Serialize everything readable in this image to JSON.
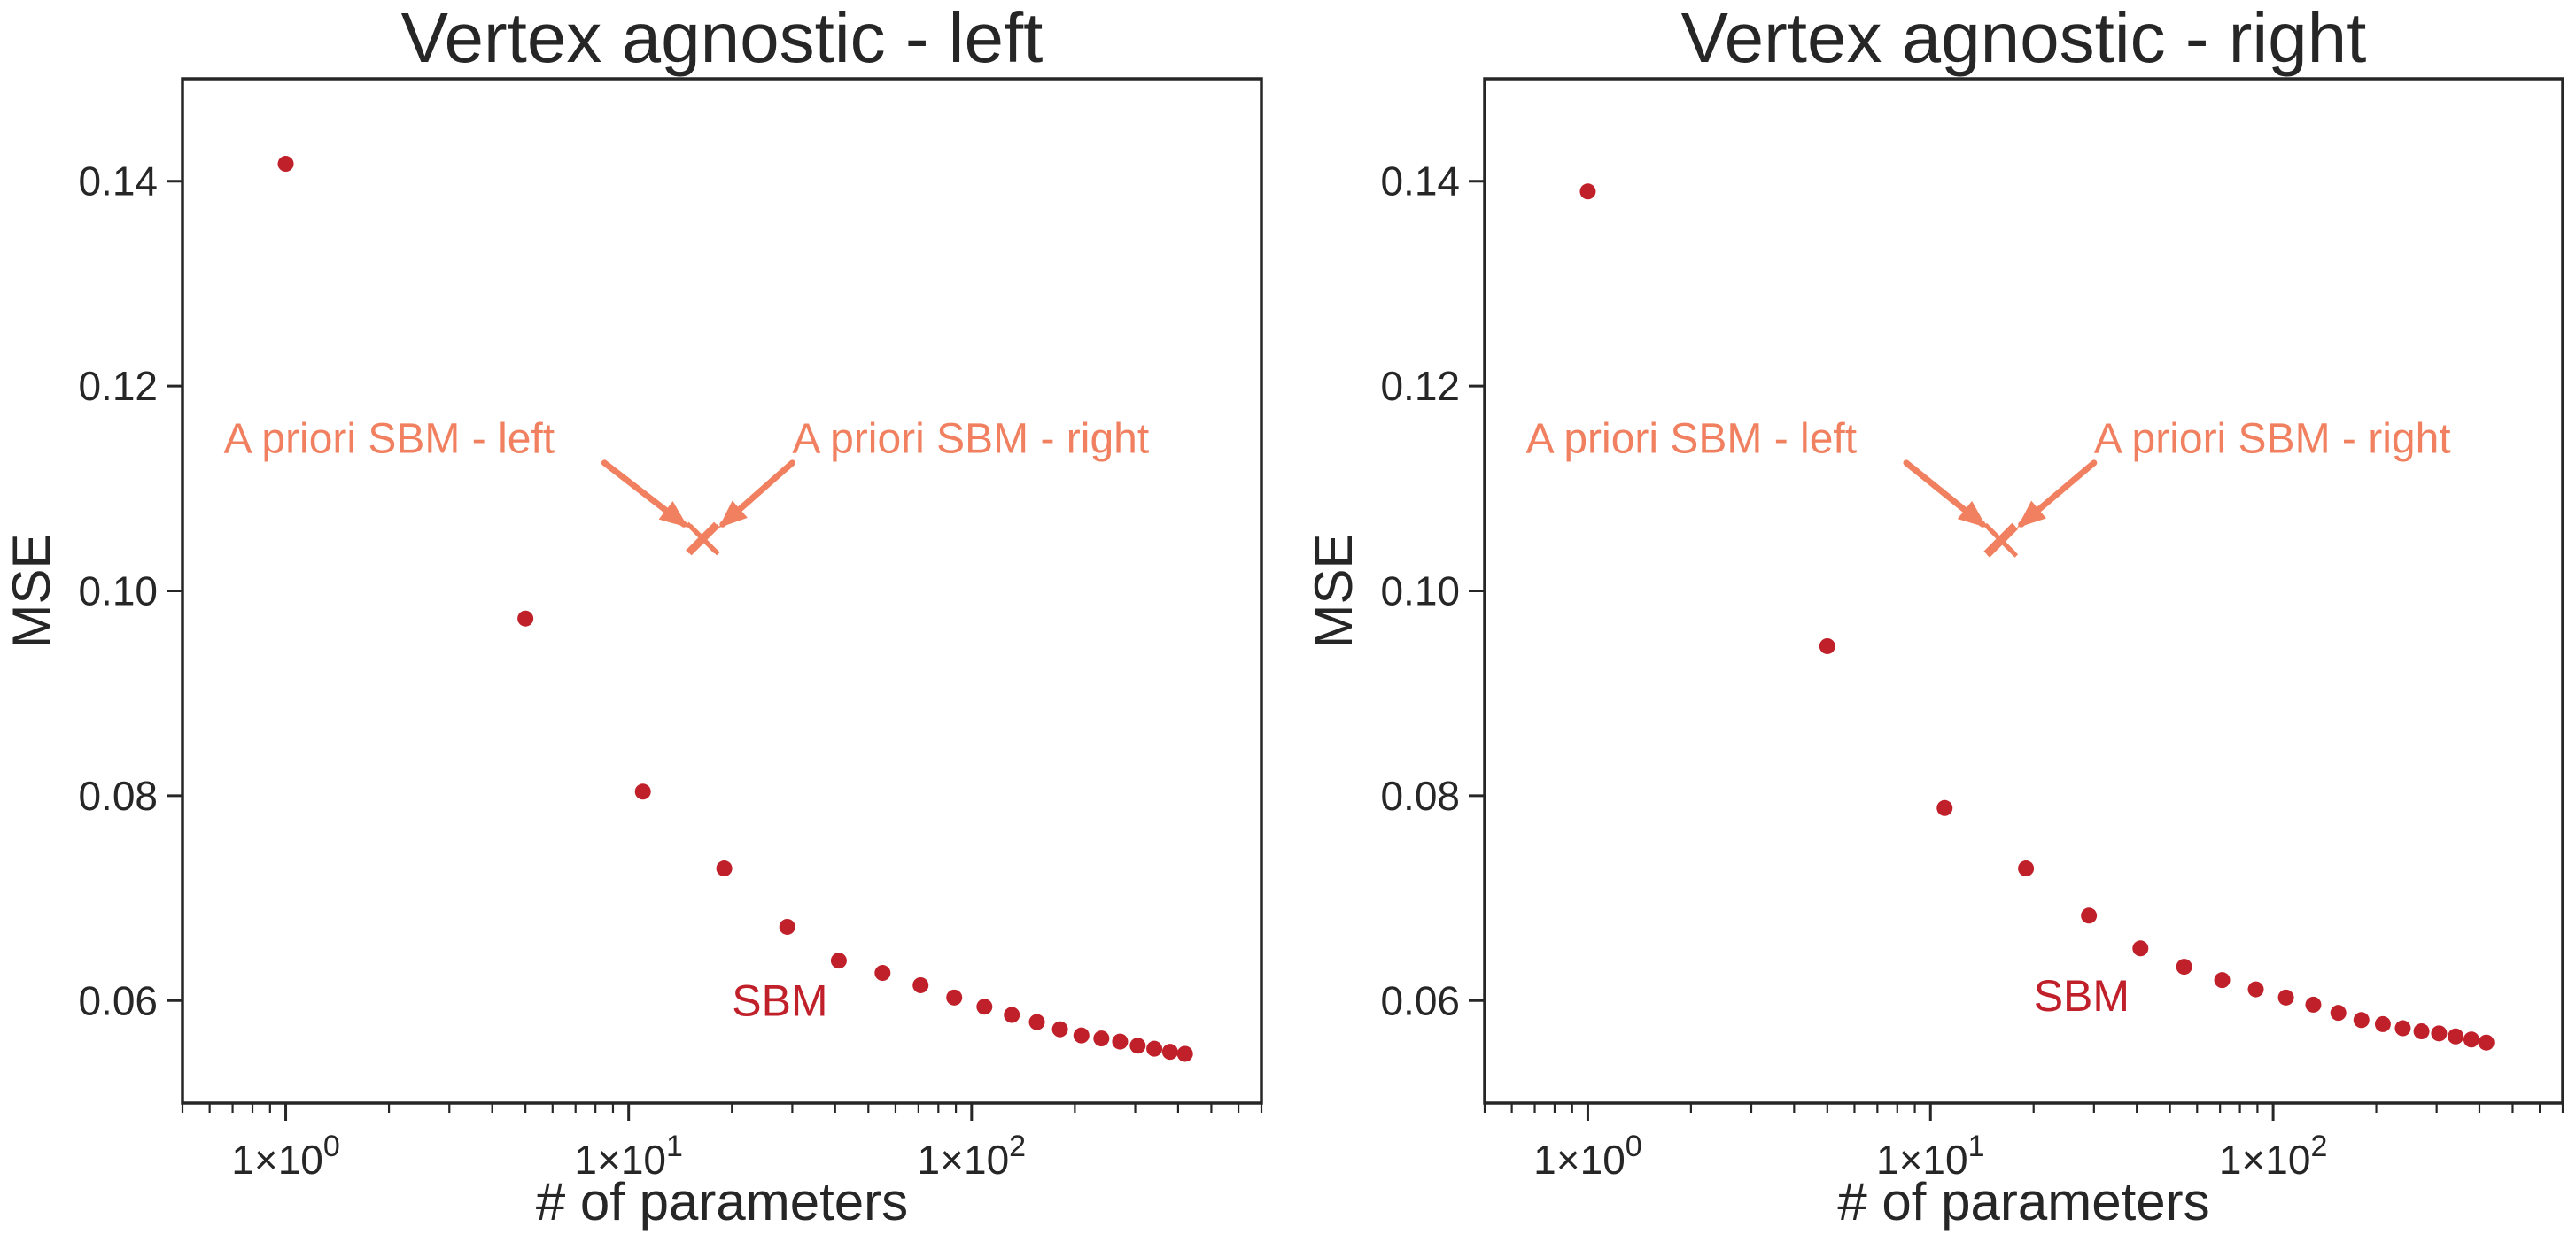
{
  "chart_data": [
    {
      "type": "scatter",
      "title": "Vertex agnostic - left",
      "xlabel": "# of parameters",
      "ylabel": "MSE",
      "xscale": "log",
      "xlim": [
        0.5,
        700
      ],
      "ylim": [
        0.05,
        0.15
      ],
      "x_tick_labels": [
        {
          "value": 1,
          "base": "1×10",
          "exp": "0"
        },
        {
          "value": 10,
          "base": "1×10",
          "exp": "1"
        },
        {
          "value": 100,
          "base": "1×10",
          "exp": "2"
        }
      ],
      "y_ticks": [
        0.06,
        0.08,
        0.1,
        0.12,
        0.14
      ],
      "y_tick_labels": [
        "0.06",
        "0.08",
        "0.10",
        "0.12",
        "0.14"
      ],
      "grid": false,
      "series": [
        {
          "name": "SBM",
          "color": "#c0202a",
          "x": [
            1,
            5,
            11,
            19,
            29,
            41,
            55,
            71,
            89,
            109,
            131,
            155,
            181,
            209,
            239,
            271,
            305,
            341,
            379,
            419
          ],
          "y": [
            0.1417,
            0.0973,
            0.0804,
            0.0729,
            0.0672,
            0.0639,
            0.0627,
            0.0615,
            0.0603,
            0.0594,
            0.0586,
            0.0579,
            0.0572,
            0.0566,
            0.0563,
            0.056,
            0.0556,
            0.0553,
            0.055,
            0.0548
          ]
        }
      ],
      "markers": [
        {
          "name": "A priori SBM - left",
          "x": 16.3,
          "y": 0.1052,
          "marker": "x",
          "color": "#f08060"
        },
        {
          "name": "A priori SBM - right",
          "x": 16.6,
          "y": 0.105,
          "marker": "x",
          "color": "#f08060"
        }
      ],
      "annotations": [
        {
          "text": "A priori SBM - left",
          "text_x": 0.66,
          "text_y": 0.1135,
          "arrow_from_x": 8.5,
          "arrow_from_y": 0.1125,
          "arrow_to_x": 14.5,
          "arrow_to_y": 0.1065,
          "color": "#f08060"
        },
        {
          "text": "A priori SBM - right",
          "text_x": 30,
          "text_y": 0.1135,
          "arrow_from_x": 30,
          "arrow_from_y": 0.1125,
          "arrow_to_x": 18.8,
          "arrow_to_y": 0.1065,
          "color": "#f08060"
        },
        {
          "text": "SBM",
          "text_x": 20,
          "text_y": 0.0585,
          "color": "#c0202a"
        }
      ]
    },
    {
      "type": "scatter",
      "title": "Vertex agnostic - right",
      "xlabel": "# of parameters",
      "ylabel": "MSE",
      "xscale": "log",
      "xlim": [
        0.5,
        700
      ],
      "ylim": [
        0.05,
        0.15
      ],
      "x_tick_labels": [
        {
          "value": 1,
          "base": "1×10",
          "exp": "0"
        },
        {
          "value": 10,
          "base": "1×10",
          "exp": "1"
        },
        {
          "value": 100,
          "base": "1×10",
          "exp": "2"
        }
      ],
      "y_ticks": [
        0.06,
        0.08,
        0.1,
        0.12,
        0.14
      ],
      "y_tick_labels": [
        "0.06",
        "0.08",
        "0.10",
        "0.12",
        "0.14"
      ],
      "grid": false,
      "series": [
        {
          "name": "SBM",
          "color": "#c0202a",
          "x": [
            1,
            5,
            11,
            19,
            29,
            41,
            55,
            71,
            89,
            109,
            131,
            155,
            181,
            209,
            239,
            271,
            305,
            341,
            379,
            419
          ],
          "y": [
            0.139,
            0.0946,
            0.0788,
            0.0729,
            0.0683,
            0.0651,
            0.0633,
            0.062,
            0.0611,
            0.0603,
            0.0596,
            0.0588,
            0.0581,
            0.0577,
            0.0573,
            0.057,
            0.0568,
            0.0565,
            0.0562,
            0.0559
          ]
        }
      ],
      "markers": [
        {
          "name": "A priori SBM - left",
          "x": 15.9,
          "y": 0.1051,
          "marker": "x",
          "color": "#f08060"
        },
        {
          "name": "A priori SBM - right",
          "x": 16.2,
          "y": 0.1048,
          "marker": "x",
          "color": "#f08060"
        }
      ],
      "annotations": [
        {
          "text": "A priori SBM - left",
          "text_x": 0.66,
          "text_y": 0.1135,
          "arrow_from_x": 8.5,
          "arrow_from_y": 0.1125,
          "arrow_to_x": 14.2,
          "arrow_to_y": 0.1065,
          "color": "#f08060"
        },
        {
          "text": "A priori SBM - right",
          "text_x": 30,
          "text_y": 0.1135,
          "arrow_from_x": 30,
          "arrow_from_y": 0.1125,
          "arrow_to_x": 18.4,
          "arrow_to_y": 0.1065,
          "color": "#f08060"
        },
        {
          "text": "SBM",
          "text_x": 20,
          "text_y": 0.059,
          "color": "#c0202a"
        }
      ]
    }
  ]
}
